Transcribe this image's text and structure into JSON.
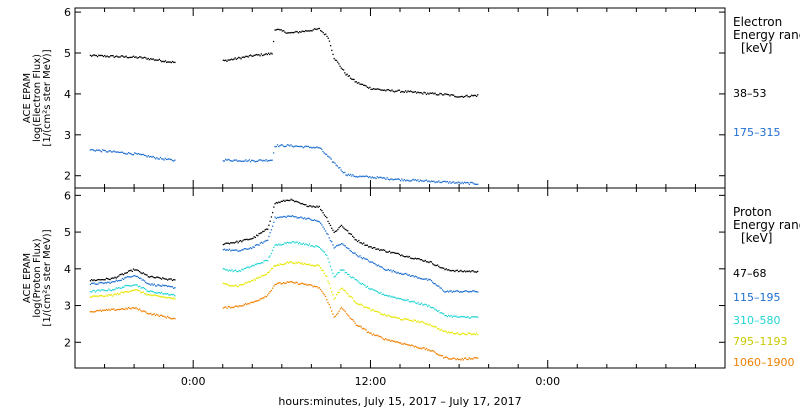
{
  "chart_data": [
    {
      "type": "scatter",
      "panel": "electron",
      "ylabel": [
        "ACE EPAM",
        "log(Electron Flux)",
        "[1/(cm²s ster MeV)]"
      ],
      "ylim": [
        1.7,
        6.1
      ],
      "yticks": [
        2,
        3,
        4,
        5,
        6
      ],
      "legend_title": [
        "Electron",
        "Energy range"
      ],
      "legend_unit": "[keV]",
      "legend_placement": "right",
      "series": [
        {
          "name": "38–53",
          "color": "#000000",
          "points": [
            [
              -7.0,
              4.95
            ],
            [
              -4.5,
              4.92
            ],
            [
              -3.5,
              4.9
            ],
            [
              -2.0,
              4.82
            ],
            [
              -1.2,
              4.78
            ],
            [
              2.0,
              4.82
            ],
            [
              4.0,
              4.95
            ],
            [
              5.3,
              5.0
            ],
            [
              5.5,
              5.6
            ],
            [
              6.5,
              5.5
            ],
            [
              7.5,
              5.55
            ],
            [
              8.5,
              5.6
            ],
            [
              9.1,
              5.4
            ],
            [
              9.5,
              4.9
            ],
            [
              10.3,
              4.5
            ],
            [
              11.0,
              4.3
            ],
            [
              12.0,
              4.15
            ],
            [
              13.0,
              4.1
            ],
            [
              14.0,
              4.08
            ],
            [
              15.0,
              4.05
            ],
            [
              16.0,
              4.02
            ],
            [
              17.0,
              4.0
            ],
            [
              18.0,
              3.95
            ],
            [
              19.3,
              3.98
            ]
          ]
        },
        {
          "name": "175–315",
          "color": "#1f6fd1",
          "points": [
            [
              -7.0,
              2.65
            ],
            [
              -5.5,
              2.6
            ],
            [
              -4.0,
              2.55
            ],
            [
              -2.5,
              2.45
            ],
            [
              -1.2,
              2.38
            ],
            [
              2.0,
              2.4
            ],
            [
              4.0,
              2.38
            ],
            [
              5.3,
              2.4
            ],
            [
              5.5,
              2.75
            ],
            [
              6.5,
              2.75
            ],
            [
              7.5,
              2.72
            ],
            [
              8.5,
              2.7
            ],
            [
              9.3,
              2.4
            ],
            [
              10.3,
              2.05
            ],
            [
              11.0,
              2.0
            ],
            [
              12.0,
              1.98
            ],
            [
              13.0,
              1.95
            ],
            [
              14.0,
              1.92
            ],
            [
              15.0,
              1.9
            ],
            [
              16.0,
              1.88
            ],
            [
              17.0,
              1.86
            ],
            [
              18.0,
              1.84
            ],
            [
              19.3,
              1.82
            ]
          ]
        }
      ]
    },
    {
      "type": "scatter",
      "panel": "proton",
      "ylabel": [
        "ACE EPAM",
        "log(Proton Flux)",
        "[1/(cm²s ster MeV)]"
      ],
      "ylim": [
        1.3,
        6.2
      ],
      "yticks": [
        2,
        3,
        4,
        5,
        6
      ],
      "legend_title": [
        "Proton",
        "Energy range"
      ],
      "legend_unit": "[keV]",
      "legend_placement": "right",
      "series": [
        {
          "name": "47–68",
          "color": "#000000",
          "points": [
            [
              -7.0,
              3.7
            ],
            [
              -5.5,
              3.75
            ],
            [
              -4.0,
              4.0
            ],
            [
              -3.0,
              3.8
            ],
            [
              -1.2,
              3.7
            ],
            [
              2.0,
              4.7
            ],
            [
              3.0,
              4.75
            ],
            [
              4.0,
              4.85
            ],
            [
              5.0,
              5.1
            ],
            [
              5.5,
              5.8
            ],
            [
              6.5,
              5.9
            ],
            [
              7.5,
              5.75
            ],
            [
              8.5,
              5.7
            ],
            [
              9.0,
              5.4
            ],
            [
              9.5,
              5.0
            ],
            [
              10.0,
              5.2
            ],
            [
              11.0,
              4.8
            ],
            [
              12.0,
              4.6
            ],
            [
              13.0,
              4.5
            ],
            [
              14.0,
              4.4
            ],
            [
              15.0,
              4.3
            ],
            [
              16.0,
              4.2
            ],
            [
              17.0,
              4.0
            ],
            [
              18.0,
              3.95
            ],
            [
              19.3,
              3.95
            ]
          ]
        },
        {
          "name": "115–195",
          "color": "#1f6fd1",
          "points": [
            [
              -7.0,
              3.6
            ],
            [
              -5.5,
              3.65
            ],
            [
              -4.0,
              3.85
            ],
            [
              -3.0,
              3.6
            ],
            [
              -1.2,
              3.5
            ],
            [
              2.0,
              4.55
            ],
            [
              3.0,
              4.5
            ],
            [
              4.0,
              4.6
            ],
            [
              5.0,
              4.8
            ],
            [
              5.5,
              5.4
            ],
            [
              6.5,
              5.45
            ],
            [
              7.5,
              5.4
            ],
            [
              8.5,
              5.3
            ],
            [
              9.0,
              5.0
            ],
            [
              9.5,
              4.6
            ],
            [
              10.0,
              4.7
            ],
            [
              11.0,
              4.4
            ],
            [
              12.0,
              4.2
            ],
            [
              13.0,
              4.0
            ],
            [
              14.0,
              3.9
            ],
            [
              15.0,
              3.8
            ],
            [
              16.0,
              3.7
            ],
            [
              17.0,
              3.4
            ],
            [
              18.0,
              3.4
            ],
            [
              19.3,
              3.4
            ]
          ]
        },
        {
          "name": "310–580",
          "color": "#22d4d4",
          "points": [
            [
              -7.0,
              3.4
            ],
            [
              -5.5,
              3.45
            ],
            [
              -4.0,
              3.6
            ],
            [
              -3.0,
              3.4
            ],
            [
              -1.2,
              3.3
            ],
            [
              2.0,
              4.0
            ],
            [
              3.0,
              3.95
            ],
            [
              4.0,
              4.1
            ],
            [
              5.0,
              4.25
            ],
            [
              5.5,
              4.65
            ],
            [
              6.5,
              4.75
            ],
            [
              7.5,
              4.7
            ],
            [
              8.5,
              4.6
            ],
            [
              9.0,
              4.4
            ],
            [
              9.5,
              3.8
            ],
            [
              10.0,
              4.0
            ],
            [
              11.0,
              3.7
            ],
            [
              12.0,
              3.45
            ],
            [
              13.0,
              3.3
            ],
            [
              14.0,
              3.2
            ],
            [
              15.0,
              3.1
            ],
            [
              16.0,
              3.0
            ],
            [
              17.0,
              2.75
            ],
            [
              18.0,
              2.7
            ],
            [
              19.3,
              2.7
            ]
          ]
        },
        {
          "name": "795–1193",
          "color": "#e6e600",
          "points": [
            [
              -7.0,
              3.25
            ],
            [
              -5.5,
              3.3
            ],
            [
              -4.0,
              3.45
            ],
            [
              -3.0,
              3.3
            ],
            [
              -1.2,
              3.2
            ],
            [
              2.0,
              3.6
            ],
            [
              3.0,
              3.55
            ],
            [
              4.0,
              3.7
            ],
            [
              5.0,
              3.9
            ],
            [
              5.5,
              4.1
            ],
            [
              6.5,
              4.2
            ],
            [
              7.5,
              4.15
            ],
            [
              8.5,
              4.1
            ],
            [
              9.0,
              3.8
            ],
            [
              9.5,
              3.2
            ],
            [
              10.0,
              3.5
            ],
            [
              11.0,
              3.1
            ],
            [
              12.0,
              2.9
            ],
            [
              13.0,
              2.75
            ],
            [
              14.0,
              2.65
            ],
            [
              15.0,
              2.6
            ],
            [
              16.0,
              2.5
            ],
            [
              17.0,
              2.3
            ],
            [
              18.0,
              2.25
            ],
            [
              19.3,
              2.25
            ]
          ]
        },
        {
          "name": "1060–1900",
          "color": "#f08000",
          "points": [
            [
              -7.0,
              2.85
            ],
            [
              -5.5,
              2.9
            ],
            [
              -4.0,
              2.95
            ],
            [
              -3.0,
              2.8
            ],
            [
              -1.2,
              2.65
            ],
            [
              2.0,
              2.95
            ],
            [
              3.0,
              3.0
            ],
            [
              4.0,
              3.1
            ],
            [
              5.0,
              3.3
            ],
            [
              5.5,
              3.6
            ],
            [
              6.5,
              3.65
            ],
            [
              7.5,
              3.6
            ],
            [
              8.5,
              3.5
            ],
            [
              9.0,
              3.2
            ],
            [
              9.5,
              2.7
            ],
            [
              10.0,
              2.95
            ],
            [
              11.0,
              2.5
            ],
            [
              12.0,
              2.25
            ],
            [
              13.0,
              2.1
            ],
            [
              14.0,
              2.0
            ],
            [
              15.0,
              1.9
            ],
            [
              16.0,
              1.8
            ],
            [
              17.0,
              1.6
            ],
            [
              18.0,
              1.55
            ],
            [
              19.3,
              1.6
            ]
          ]
        }
      ]
    }
  ],
  "x_axis": {
    "ticks": [
      {
        "hour": 0,
        "label": "0:00"
      },
      {
        "hour": 12,
        "label": "12:00"
      },
      {
        "hour": 24,
        "label": "0:00"
      }
    ],
    "xlim": [
      -8,
      36
    ],
    "xlabel": "hours:minutes, July 15, 2017 – July 17, 2017"
  }
}
